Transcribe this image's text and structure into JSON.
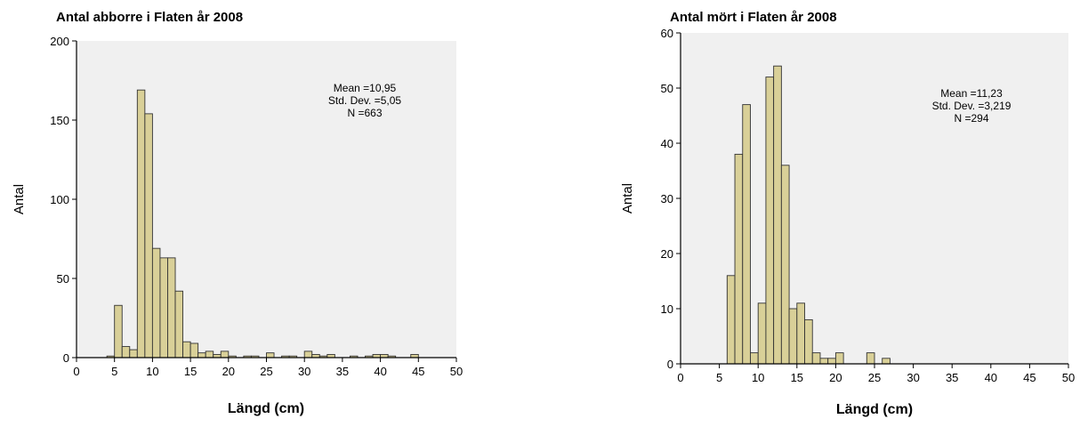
{
  "chart_data": [
    {
      "type": "bar",
      "title": "Antal abborre i Flaten år 2008",
      "xlabel": "Längd (cm)",
      "ylabel": "Antal",
      "xlim": [
        0,
        50
      ],
      "ylim": [
        0,
        200
      ],
      "xticks": [
        "0",
        "5",
        "10",
        "15",
        "20",
        "25",
        "30",
        "35",
        "40",
        "45",
        "50"
      ],
      "yticks": [
        "0",
        "50",
        "100",
        "150",
        "200"
      ],
      "bin_width": 1,
      "bins": [
        {
          "x": 4,
          "value": 1
        },
        {
          "x": 5,
          "value": 33
        },
        {
          "x": 6,
          "value": 7
        },
        {
          "x": 7,
          "value": 5
        },
        {
          "x": 8,
          "value": 169
        },
        {
          "x": 9,
          "value": 154
        },
        {
          "x": 10,
          "value": 69
        },
        {
          "x": 11,
          "value": 63
        },
        {
          "x": 12,
          "value": 63
        },
        {
          "x": 13,
          "value": 42
        },
        {
          "x": 14,
          "value": 10
        },
        {
          "x": 15,
          "value": 9
        },
        {
          "x": 16,
          "value": 3
        },
        {
          "x": 17,
          "value": 4
        },
        {
          "x": 18,
          "value": 2
        },
        {
          "x": 19,
          "value": 4
        },
        {
          "x": 20,
          "value": 1
        },
        {
          "x": 22,
          "value": 1
        },
        {
          "x": 23,
          "value": 1
        },
        {
          "x": 25,
          "value": 3
        },
        {
          "x": 27,
          "value": 1
        },
        {
          "x": 28,
          "value": 1
        },
        {
          "x": 30,
          "value": 4
        },
        {
          "x": 31,
          "value": 2
        },
        {
          "x": 32,
          "value": 1
        },
        {
          "x": 33,
          "value": 2
        },
        {
          "x": 36,
          "value": 1
        },
        {
          "x": 38,
          "value": 1
        },
        {
          "x": 39,
          "value": 2
        },
        {
          "x": 40,
          "value": 2
        },
        {
          "x": 41,
          "value": 1
        },
        {
          "x": 44,
          "value": 2
        }
      ],
      "stats": {
        "mean": "Mean =10,95",
        "std": "Std. Dev. =5,05",
        "n": "N =663"
      },
      "colors": {
        "bar": "#d9d098",
        "bar_edge": "#333333",
        "plot_bg": "#f0f0f0",
        "frame": "#000000"
      }
    },
    {
      "type": "bar",
      "title": "Antal mört i Flaten år 2008",
      "xlabel": "Längd (cm)",
      "ylabel": "Antal",
      "xlim": [
        0,
        50
      ],
      "ylim": [
        0,
        60
      ],
      "xticks": [
        "0",
        "5",
        "10",
        "15",
        "20",
        "25",
        "30",
        "35",
        "40",
        "45",
        "50"
      ],
      "yticks": [
        "0",
        "10",
        "20",
        "30",
        "40",
        "50",
        "60"
      ],
      "bin_width": 1,
      "bins": [
        {
          "x": 6,
          "value": 16
        },
        {
          "x": 7,
          "value": 38
        },
        {
          "x": 8,
          "value": 47
        },
        {
          "x": 9,
          "value": 2
        },
        {
          "x": 10,
          "value": 11
        },
        {
          "x": 11,
          "value": 52
        },
        {
          "x": 12,
          "value": 54
        },
        {
          "x": 13,
          "value": 36
        },
        {
          "x": 14,
          "value": 10
        },
        {
          "x": 15,
          "value": 11
        },
        {
          "x": 16,
          "value": 8
        },
        {
          "x": 17,
          "value": 2
        },
        {
          "x": 18,
          "value": 1
        },
        {
          "x": 19,
          "value": 1
        },
        {
          "x": 20,
          "value": 2
        },
        {
          "x": 24,
          "value": 2
        },
        {
          "x": 26,
          "value": 1
        }
      ],
      "stats": {
        "mean": "Mean =11,23",
        "std": "Std. Dev. =3,219",
        "n": "N =294"
      },
      "colors": {
        "bar": "#d9d098",
        "bar_edge": "#333333",
        "plot_bg": "#f0f0f0",
        "frame": "#000000"
      }
    }
  ]
}
